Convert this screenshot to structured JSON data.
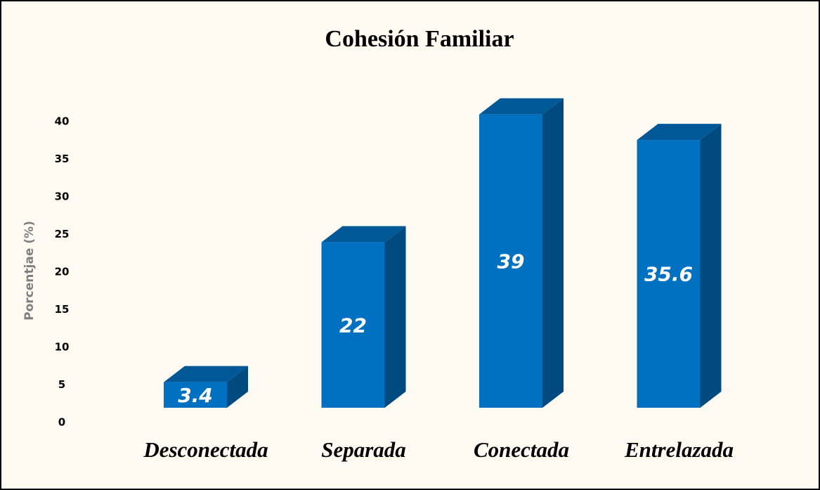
{
  "chart_data": {
    "type": "bar3d",
    "title": "Cohesión Familiar",
    "y_label": "Porcentjae (%)",
    "categories": [
      "Desconectada",
      "Separada",
      "Conectada",
      "Entrelazada"
    ],
    "values": [
      3.4,
      22,
      39,
      35.6
    ],
    "color": "#0070c0",
    "ylim": [
      0,
      40
    ],
    "yticks": [
      0,
      5,
      10,
      15,
      20,
      25,
      30,
      35,
      40
    ],
    "grid": false
  }
}
